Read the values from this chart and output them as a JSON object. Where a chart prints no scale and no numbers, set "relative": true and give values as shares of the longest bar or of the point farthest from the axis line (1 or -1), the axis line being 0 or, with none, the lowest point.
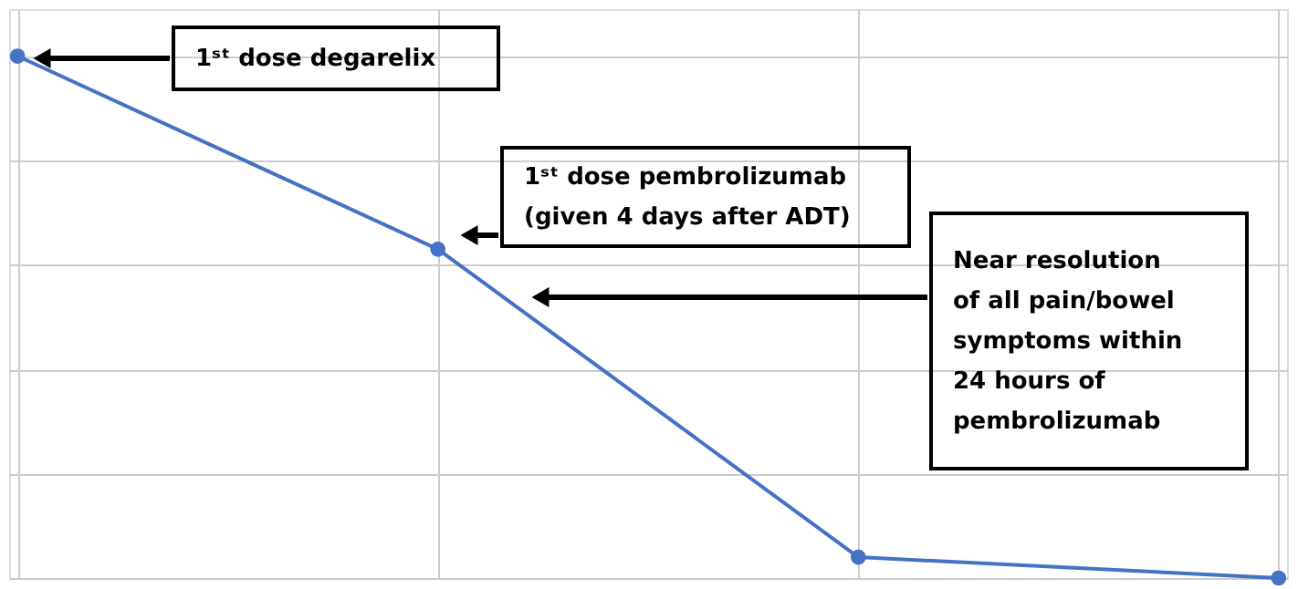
{
  "chart_data": {
    "type": "line",
    "relative": true,
    "categories": [
      null,
      null,
      null,
      null
    ],
    "series": [
      {
        "color": "#4472c4",
        "values": [
          1,
          0.63,
          0.04,
          0
        ]
      }
    ],
    "marker": "circle",
    "grid": true,
    "tick_labels": false,
    "annotations": [
      "1ˢᵗ dose degarelix",
      "1ˢᵗ dose pembrolizumab\n(given 4 days after ADT)",
      "Near resolution\nof all pain/bowel\nsymptoms within\n24 hours of\npembrolizumab"
    ]
  }
}
